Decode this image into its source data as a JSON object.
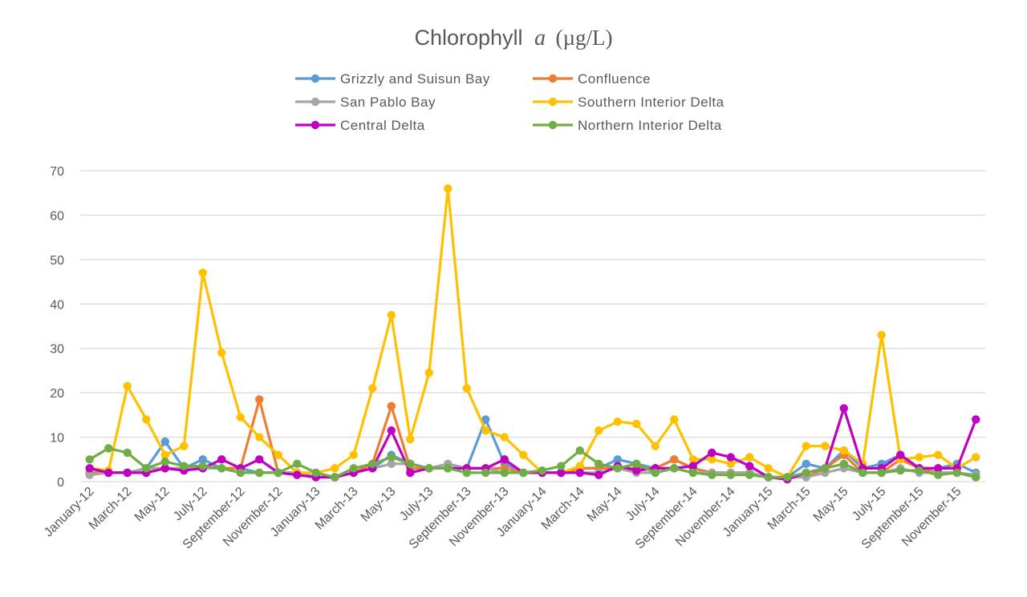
{
  "chart_data": {
    "type": "line",
    "title": "Chlorophyll",
    "title_italic": "a",
    "title_unit": "(µg/L)",
    "xlabel": "",
    "ylabel": "",
    "ylim": [
      0,
      70
    ],
    "yticks": [
      0,
      10,
      20,
      30,
      40,
      50,
      60,
      70
    ],
    "grid": true,
    "legend_position": "top-center",
    "categories": [
      "January-12",
      "February-12",
      "March-12",
      "April-12",
      "May-12",
      "June-12",
      "July-12",
      "August-12",
      "September-12",
      "October-12",
      "November-12",
      "December-12",
      "January-13",
      "February-13",
      "March-13",
      "April-13",
      "May-13",
      "June-13",
      "July-13",
      "August-13",
      "September-13",
      "October-13",
      "November-13",
      "December-13",
      "January-14",
      "February-14",
      "March-14",
      "April-14",
      "May-14",
      "June-14",
      "July-14",
      "August-14",
      "September-14",
      "October-14",
      "November-14",
      "December-14",
      "January-15",
      "February-15",
      "March-15",
      "April-15",
      "May-15",
      "June-15",
      "July-15",
      "August-15",
      "September-15",
      "October-15",
      "November-15",
      "December-15"
    ],
    "x_tick_labels": [
      "January-12",
      "March-12",
      "May-12",
      "July-12",
      "September-12",
      "November-12",
      "January-13",
      "March-13",
      "May-13",
      "July-13",
      "September-13",
      "November-13",
      "January-14",
      "March-14",
      "May-14",
      "July-14",
      "September-14",
      "November-14",
      "January-15",
      "March-15",
      "May-15",
      "July-15",
      "September-15",
      "November-15"
    ],
    "series": [
      {
        "name": "Grizzly and Suisun Bay",
        "color": "#5b9bd5",
        "values": [
          2,
          2,
          2,
          3,
          9,
          3,
          5,
          3,
          3,
          2,
          2,
          2,
          1,
          1,
          2,
          3,
          6,
          4,
          3,
          3,
          3,
          14,
          4,
          2,
          2,
          2,
          3,
          3,
          5,
          4,
          3,
          5,
          3,
          2,
          2,
          2,
          1,
          1,
          4,
          3,
          7,
          3,
          4,
          6,
          3,
          3,
          4,
          2
        ]
      },
      {
        "name": "Confluence",
        "color": "#ed7d31",
        "values": [
          2,
          2,
          2,
          2,
          3,
          3,
          3,
          3,
          3,
          18.5,
          2,
          2,
          1,
          1,
          2,
          4,
          17,
          3,
          3,
          3,
          3,
          3,
          3,
          2,
          2,
          2,
          3,
          3,
          3,
          3,
          3,
          5,
          3,
          2,
          2,
          2,
          1,
          1,
          1,
          3,
          6,
          2,
          2,
          5,
          3,
          2,
          2,
          1
        ]
      },
      {
        "name": "San Pablo Bay",
        "color": "#a5a5a5",
        "values": [
          1.5,
          2,
          2,
          3,
          3,
          3,
          3,
          3,
          2,
          2,
          2,
          2,
          1,
          1,
          2,
          3,
          4,
          4,
          3,
          4,
          3,
          3,
          2,
          2,
          2,
          2,
          2,
          2,
          3,
          2,
          2,
          3,
          2,
          2,
          2,
          2,
          1,
          1,
          1,
          2,
          3,
          2,
          2,
          3,
          2,
          2,
          2,
          1.5
        ]
      },
      {
        "name": "Southern Interior Delta",
        "color": "#ffc000",
        "values": [
          3,
          2.5,
          21.5,
          14,
          6,
          8,
          47,
          29,
          14.5,
          10,
          6,
          2,
          2,
          3,
          6,
          21,
          37.5,
          9.5,
          24.5,
          66,
          21,
          11.5,
          10,
          6,
          2,
          2,
          3.5,
          11.5,
          13.5,
          13,
          8,
          14,
          5,
          5,
          4,
          5.5,
          3,
          1,
          8,
          8,
          7,
          4,
          33,
          5,
          5.5,
          6,
          3,
          5.5
        ]
      },
      {
        "name": "Central Delta",
        "color": "#c000c0",
        "values": [
          3,
          2,
          2,
          2,
          3,
          2.5,
          3,
          5,
          3,
          5,
          2,
          1.5,
          1,
          1,
          2,
          3,
          11.5,
          2,
          3,
          3,
          3,
          3,
          5,
          2,
          2,
          2,
          2,
          1.5,
          3.5,
          2.5,
          3,
          3,
          3.5,
          6.5,
          5.5,
          3.5,
          1,
          0.5,
          2,
          3,
          16.5,
          3,
          3,
          6,
          3,
          3,
          3,
          14
        ]
      },
      {
        "name": "Northern Interior Delta",
        "color": "#70ad47",
        "values": [
          5,
          7.5,
          6.5,
          3,
          4.5,
          3.5,
          3.5,
          3,
          2,
          2,
          2,
          4,
          2,
          1,
          3,
          4,
          5.5,
          4,
          3,
          3,
          2,
          2,
          2,
          2,
          2.5,
          3.5,
          7,
          4,
          3,
          4,
          2,
          3,
          2,
          1.5,
          1.5,
          1.5,
          1,
          1,
          2,
          3,
          4,
          2,
          2,
          2.5,
          2.5,
          1.5,
          2,
          1
        ]
      }
    ]
  }
}
